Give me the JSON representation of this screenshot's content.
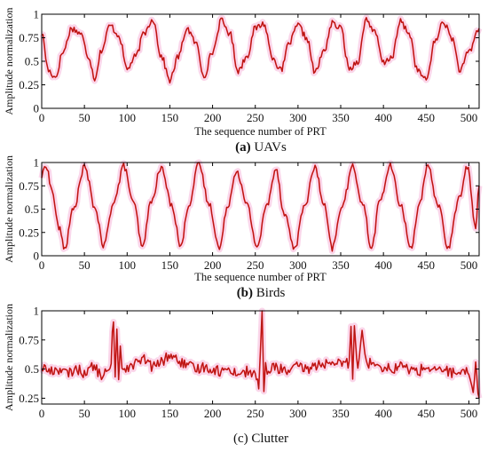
{
  "figure": {
    "panels": [
      {
        "caption_letter": "(a)",
        "caption_text": "UAVs"
      },
      {
        "caption_letter": "(b)",
        "caption_text": "Birds"
      },
      {
        "caption_letter": "(c)",
        "caption_text": "Clutter"
      }
    ]
  },
  "colors": {
    "signal_line": "#e8191e",
    "signal_dark": "#8b1a0e",
    "halo": "#f5b5d8",
    "axis": "#000000"
  },
  "chart_data": [
    {
      "type": "line",
      "title": "(a) UAVs",
      "xlabel": "The sequence number of PRT",
      "ylabel": "Amplitude normalization",
      "xlim": [
        0,
        512
      ],
      "ylim": [
        0,
        1
      ],
      "xticks": [
        0,
        50,
        100,
        150,
        200,
        250,
        300,
        350,
        400,
        450,
        500
      ],
      "yticks": [
        0,
        0.25,
        0.5,
        0.75,
        1
      ],
      "ytick_labels": [
        "0",
        "0.25",
        "0.5",
        "0.75",
        "1"
      ],
      "grid": false,
      "series": [
        {
          "x": [
            0,
            8,
            16,
            25,
            35,
            45,
            55,
            62,
            70,
            80,
            90,
            100,
            110,
            120,
            130,
            140,
            150,
            160,
            170,
            180,
            190,
            200,
            210,
            220,
            230,
            240,
            250,
            260,
            270,
            280,
            290,
            300,
            310,
            320,
            330,
            340,
            350,
            360,
            370,
            380,
            390,
            400,
            410,
            420,
            430,
            440,
            450,
            460,
            470,
            480,
            490,
            500,
            512
          ],
          "y": [
            0.8,
            0.4,
            0.33,
            0.6,
            0.85,
            0.8,
            0.55,
            0.32,
            0.62,
            0.88,
            0.78,
            0.42,
            0.55,
            0.8,
            0.95,
            0.55,
            0.3,
            0.55,
            0.85,
            0.7,
            0.35,
            0.6,
            0.93,
            0.8,
            0.4,
            0.55,
            0.85,
            0.9,
            0.55,
            0.4,
            0.7,
            0.88,
            0.75,
            0.38,
            0.6,
            0.9,
            0.85,
            0.42,
            0.5,
            0.95,
            0.8,
            0.48,
            0.55,
            0.92,
            0.8,
            0.4,
            0.3,
            0.7,
            0.92,
            0.75,
            0.4,
            0.6,
            0.85
          ]
        }
      ]
    },
    {
      "type": "line",
      "title": "(b) Birds",
      "xlabel": "The sequence number of PRT",
      "ylabel": "Amplitude normalization",
      "xlim": [
        0,
        512
      ],
      "ylim": [
        0,
        1
      ],
      "xticks": [
        0,
        50,
        100,
        150,
        200,
        250,
        300,
        350,
        400,
        450,
        500
      ],
      "yticks": [
        0,
        0.25,
        0.5,
        0.75,
        1
      ],
      "ytick_labels": [
        "0",
        "0.25",
        "0.5",
        "0.75",
        "1"
      ],
      "grid": false,
      "series": [
        {
          "x": [
            0,
            5,
            12,
            20,
            27,
            37,
            50,
            63,
            72,
            85,
            96,
            108,
            118,
            127,
            140,
            152,
            163,
            172,
            184,
            196,
            208,
            218,
            228,
            240,
            252,
            264,
            274,
            284,
            296,
            308,
            320,
            330,
            340,
            352,
            364,
            376,
            386,
            396,
            408,
            420,
            432,
            442,
            452,
            464,
            476,
            488,
            498,
            508,
            512
          ],
          "y": [
            0.85,
            0.98,
            0.7,
            0.3,
            0.08,
            0.5,
            0.95,
            0.5,
            0.1,
            0.6,
            0.96,
            0.55,
            0.08,
            0.55,
            0.94,
            0.55,
            0.1,
            0.55,
            0.98,
            0.55,
            0.08,
            0.55,
            0.92,
            0.55,
            0.1,
            0.55,
            0.94,
            0.45,
            0.08,
            0.55,
            0.95,
            0.55,
            0.08,
            0.55,
            0.95,
            0.55,
            0.08,
            0.6,
            0.96,
            0.55,
            0.08,
            0.55,
            0.95,
            0.55,
            0.08,
            0.6,
            0.96,
            0.3,
            0.75
          ]
        }
      ]
    },
    {
      "type": "line",
      "title": "(c) Clutter",
      "xlabel": "",
      "ylabel": "Amplitude normalization",
      "xlim": [
        0,
        512
      ],
      "ylim": [
        0.2,
        1
      ],
      "xticks": [
        0,
        50,
        100,
        150,
        200,
        250,
        300,
        350,
        400,
        450,
        500
      ],
      "yticks": [
        0.25,
        0.5,
        0.75,
        1
      ],
      "ytick_labels": [
        "0.25",
        "0.5",
        "0.75",
        "1"
      ],
      "grid": false,
      "series": [
        {
          "x": [
            0,
            10,
            20,
            30,
            40,
            50,
            60,
            70,
            80,
            84,
            86,
            88,
            90,
            92,
            94,
            100,
            110,
            120,
            130,
            140,
            150,
            160,
            170,
            180,
            190,
            200,
            210,
            220,
            230,
            240,
            250,
            254,
            256,
            258,
            260,
            262,
            264,
            270,
            280,
            290,
            300,
            310,
            320,
            330,
            340,
            350,
            360,
            362,
            364,
            366,
            370,
            375,
            380,
            390,
            400,
            410,
            420,
            430,
            440,
            450,
            460,
            470,
            480,
            490,
            500,
            505,
            508,
            512
          ],
          "y": [
            0.52,
            0.48,
            0.5,
            0.46,
            0.5,
            0.47,
            0.52,
            0.45,
            0.48,
            0.88,
            0.4,
            0.87,
            0.45,
            0.7,
            0.5,
            0.52,
            0.55,
            0.58,
            0.52,
            0.56,
            0.62,
            0.57,
            0.53,
            0.5,
            0.52,
            0.5,
            0.48,
            0.5,
            0.46,
            0.48,
            0.45,
            0.35,
            0.7,
            1.0,
            0.3,
            0.55,
            0.45,
            0.52,
            0.5,
            0.48,
            0.52,
            0.5,
            0.53,
            0.55,
            0.52,
            0.56,
            0.55,
            0.86,
            0.45,
            0.85,
            0.55,
            0.8,
            0.55,
            0.56,
            0.52,
            0.5,
            0.53,
            0.5,
            0.48,
            0.52,
            0.48,
            0.5,
            0.47,
            0.45,
            0.48,
            0.3,
            0.55,
            0.25
          ]
        }
      ]
    }
  ]
}
